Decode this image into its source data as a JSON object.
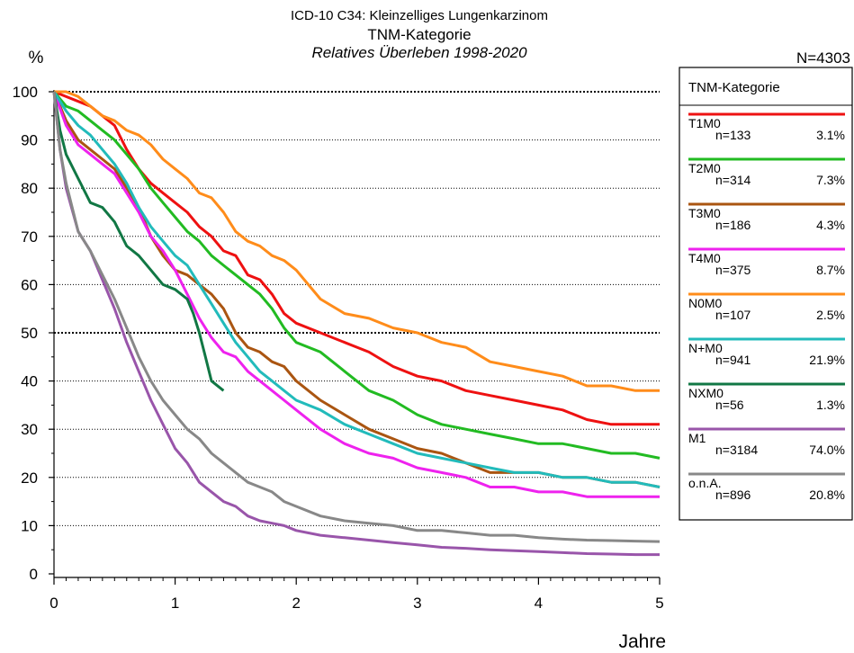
{
  "chart_data": {
    "type": "line",
    "title": "ICD-10 C34: Kleinzelliges Lungenkarzinom",
    "subtitle": "TNM-Kategorie",
    "subtitle2": "Relatives Überleben 1998-2020",
    "ylabel": "%",
    "xlabel": "Jahre",
    "total_n": "N=4303",
    "xlim": [
      0,
      5
    ],
    "ylim": [
      0,
      100
    ],
    "x_ticks": [
      "0",
      "1",
      "2",
      "3",
      "4",
      "5"
    ],
    "y_ticks": [
      "0",
      "10",
      "20",
      "30",
      "40",
      "50",
      "60",
      "70",
      "80",
      "90",
      "100"
    ],
    "grid": "horizontal dotted, 50 and 100 emphasized",
    "legend_title": "TNM-Kategorie",
    "legend_position": "right",
    "series": [
      {
        "name": "T1M0",
        "n": "n=133",
        "pct": "3.1%",
        "color": "#ee1111",
        "x": [
          0,
          0.1,
          0.2,
          0.3,
          0.4,
          0.5,
          0.6,
          0.7,
          0.8,
          0.9,
          1.0,
          1.1,
          1.2,
          1.3,
          1.4,
          1.5,
          1.6,
          1.7,
          1.8,
          1.9,
          2.0,
          2.2,
          2.4,
          2.6,
          2.8,
          3.0,
          3.2,
          3.4,
          3.6,
          3.8,
          4.0,
          4.2,
          4.4,
          4.6,
          4.8,
          5.0
        ],
        "y": [
          100,
          99,
          98,
          97,
          95,
          93,
          88,
          84,
          81,
          79,
          77,
          75,
          72,
          70,
          67,
          66,
          62,
          61,
          58,
          54,
          52,
          50,
          48,
          46,
          43,
          41,
          40,
          38,
          37,
          36,
          35,
          34,
          32,
          31,
          31,
          31
        ]
      },
      {
        "name": "T2M0",
        "n": "n=314",
        "pct": "7.3%",
        "color": "#22bb22",
        "x": [
          0,
          0.1,
          0.2,
          0.3,
          0.4,
          0.5,
          0.6,
          0.7,
          0.8,
          0.9,
          1.0,
          1.1,
          1.2,
          1.3,
          1.4,
          1.5,
          1.6,
          1.7,
          1.8,
          1.9,
          2.0,
          2.2,
          2.4,
          2.6,
          2.8,
          3.0,
          3.2,
          3.4,
          3.6,
          3.8,
          4.0,
          4.2,
          4.4,
          4.6,
          4.8,
          5.0
        ],
        "y": [
          100,
          97,
          96,
          94,
          92,
          90,
          87,
          84,
          80,
          77,
          74,
          71,
          69,
          66,
          64,
          62,
          60,
          58,
          55,
          51,
          48,
          46,
          42,
          38,
          36,
          33,
          31,
          30,
          29,
          28,
          27,
          27,
          26,
          25,
          25,
          24
        ]
      },
      {
        "name": "T3M0",
        "n": "n=186",
        "pct": "4.3%",
        "color": "#aa5511",
        "x": [
          0,
          0.1,
          0.2,
          0.3,
          0.4,
          0.5,
          0.6,
          0.7,
          0.8,
          0.9,
          1.0,
          1.1,
          1.2,
          1.3,
          1.4,
          1.5,
          1.6,
          1.7,
          1.8,
          1.9,
          2.0,
          2.2,
          2.4,
          2.6,
          2.8,
          3.0,
          3.2,
          3.4,
          3.6,
          3.8,
          4.0,
          4.2,
          4.4,
          4.6,
          4.8,
          5.0
        ],
        "y": [
          100,
          94,
          90,
          88,
          86,
          84,
          80,
          76,
          70,
          66,
          63,
          62,
          60,
          58,
          55,
          50,
          47,
          46,
          44,
          43,
          40,
          36,
          33,
          30,
          28,
          26,
          25,
          23,
          21,
          21,
          21,
          20,
          20,
          19,
          19,
          18
        ]
      },
      {
        "name": "T4M0",
        "n": "n=375",
        "pct": "8.7%",
        "color": "#ee22ee",
        "x": [
          0,
          0.1,
          0.2,
          0.3,
          0.4,
          0.5,
          0.6,
          0.7,
          0.8,
          0.9,
          1.0,
          1.1,
          1.2,
          1.3,
          1.4,
          1.5,
          1.6,
          1.7,
          1.8,
          1.9,
          2.0,
          2.2,
          2.4,
          2.6,
          2.8,
          3.0,
          3.2,
          3.4,
          3.6,
          3.8,
          4.0,
          4.2,
          4.4,
          4.6,
          4.8,
          5.0
        ],
        "y": [
          100,
          93,
          89,
          87,
          85,
          83,
          79,
          75,
          70,
          67,
          63,
          58,
          53,
          49,
          46,
          45,
          42,
          40,
          38,
          36,
          34,
          30,
          27,
          25,
          24,
          22,
          21,
          20,
          18,
          18,
          17,
          17,
          16,
          16,
          16,
          16
        ]
      },
      {
        "name": "N0M0",
        "n": "n=107",
        "pct": "2.5%",
        "color": "#ff8c1a",
        "x": [
          0,
          0.1,
          0.2,
          0.3,
          0.4,
          0.5,
          0.6,
          0.7,
          0.8,
          0.9,
          1.0,
          1.1,
          1.2,
          1.3,
          1.4,
          1.5,
          1.6,
          1.7,
          1.8,
          1.9,
          2.0,
          2.2,
          2.4,
          2.6,
          2.8,
          3.0,
          3.2,
          3.4,
          3.6,
          3.8,
          4.0,
          4.2,
          4.4,
          4.6,
          4.8,
          5.0
        ],
        "y": [
          100,
          100,
          99,
          97,
          95,
          94,
          92,
          91,
          89,
          86,
          84,
          82,
          79,
          78,
          75,
          71,
          69,
          68,
          66,
          65,
          63,
          57,
          54,
          53,
          51,
          50,
          48,
          47,
          44,
          43,
          42,
          41,
          39,
          39,
          38,
          38
        ]
      },
      {
        "name": "N+M0",
        "n": "n=941",
        "pct": "21.9%",
        "color": "#22bbbb",
        "x": [
          0,
          0.1,
          0.2,
          0.3,
          0.4,
          0.5,
          0.6,
          0.7,
          0.8,
          0.9,
          1.0,
          1.1,
          1.2,
          1.3,
          1.4,
          1.5,
          1.6,
          1.7,
          1.8,
          1.9,
          2.0,
          2.2,
          2.4,
          2.6,
          2.8,
          3.0,
          3.2,
          3.4,
          3.6,
          3.8,
          4.0,
          4.2,
          4.4,
          4.6,
          4.8,
          5.0
        ],
        "y": [
          100,
          96,
          93,
          91,
          88,
          85,
          81,
          76,
          72,
          69,
          66,
          64,
          60,
          56,
          52,
          48,
          45,
          42,
          40,
          38,
          36,
          34,
          31,
          29,
          27,
          25,
          24,
          23,
          22,
          21,
          21,
          20,
          20,
          19,
          19,
          18
        ]
      },
      {
        "name": "NXM0",
        "n": "n=56",
        "pct": "1.3%",
        "color": "#117744",
        "x": [
          0,
          0.05,
          0.1,
          0.2,
          0.3,
          0.4,
          0.5,
          0.6,
          0.7,
          0.8,
          0.9,
          1.0,
          1.1,
          1.15,
          1.2,
          1.25,
          1.3,
          1.4
        ],
        "y": [
          100,
          92,
          87,
          82,
          77,
          76,
          73,
          68,
          66,
          63,
          60,
          59,
          57,
          54,
          50,
          45,
          40,
          38
        ]
      },
      {
        "name": "M1",
        "n": "n=3184",
        "pct": "74.0%",
        "color": "#9955aa",
        "x": [
          0,
          0.05,
          0.1,
          0.2,
          0.3,
          0.4,
          0.5,
          0.6,
          0.7,
          0.8,
          0.9,
          1.0,
          1.1,
          1.2,
          1.3,
          1.4,
          1.5,
          1.6,
          1.7,
          1.8,
          1.9,
          2.0,
          2.2,
          2.4,
          2.6,
          2.8,
          3.0,
          3.2,
          3.4,
          3.6,
          3.8,
          4.0,
          4.2,
          4.4,
          4.6,
          4.8,
          5.0
        ],
        "y": [
          100,
          88,
          80,
          71,
          67,
          61,
          55,
          48,
          42,
          36,
          31,
          26,
          23,
          19,
          17,
          15,
          14,
          12,
          11,
          10.5,
          10,
          9,
          8,
          7.5,
          7,
          6.5,
          6,
          5.5,
          5.3,
          5,
          4.8,
          4.6,
          4.4,
          4.2,
          4.1,
          4.0,
          4.0
        ]
      },
      {
        "name": "o.n.A.",
        "n": "n=896",
        "pct": "20.8%",
        "color": "#888888",
        "x": [
          0,
          0.05,
          0.1,
          0.2,
          0.3,
          0.4,
          0.5,
          0.6,
          0.7,
          0.8,
          0.9,
          1.0,
          1.1,
          1.2,
          1.3,
          1.4,
          1.5,
          1.6,
          1.7,
          1.8,
          1.9,
          2.0,
          2.2,
          2.4,
          2.6,
          2.8,
          3.0,
          3.2,
          3.4,
          3.6,
          3.8,
          4.0,
          4.2,
          4.4,
          4.6,
          4.8,
          5.0
        ],
        "y": [
          100,
          88,
          81,
          71,
          67,
          62,
          57,
          51,
          45,
          40,
          36,
          33,
          30,
          28,
          25,
          23,
          21,
          19,
          18,
          17,
          15,
          14,
          12,
          11,
          10.5,
          10,
          9,
          9,
          8.5,
          8,
          8,
          7.5,
          7.2,
          7,
          6.9,
          6.8,
          6.7
        ]
      }
    ]
  }
}
